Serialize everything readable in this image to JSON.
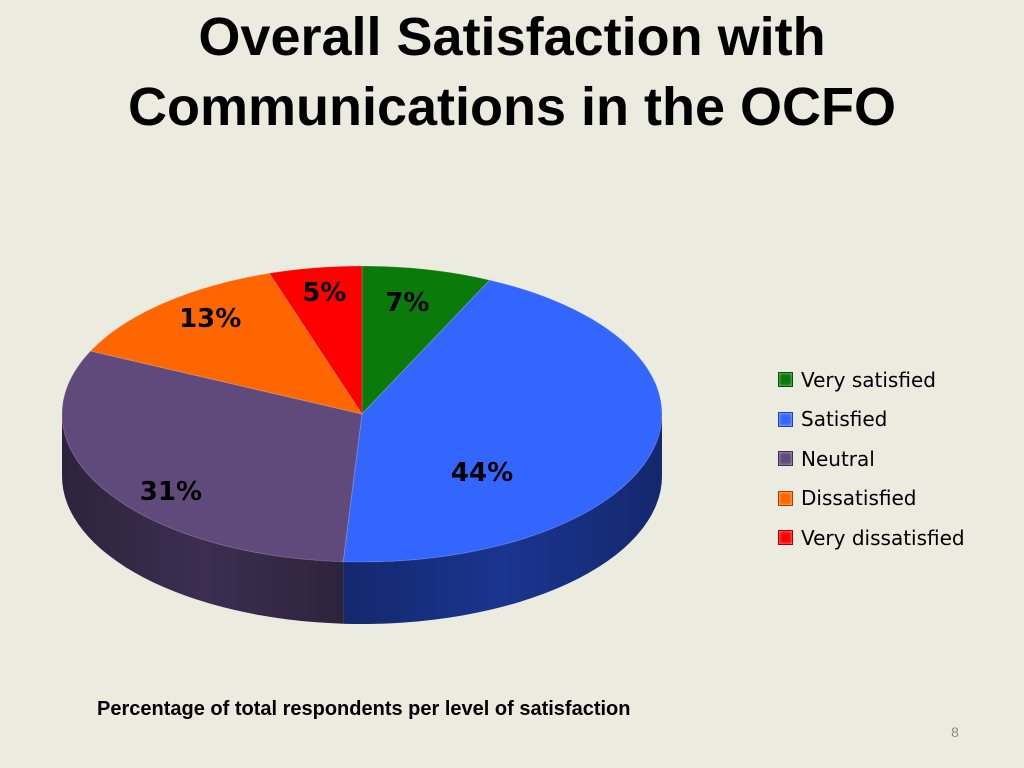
{
  "slide": {
    "title_lines": [
      "Overall Satisfaction with",
      "Communications in the OCFO"
    ],
    "caption": "Percentage of total respondents per level of satisfaction",
    "slide_number": "8"
  },
  "chart_data": {
    "type": "pie",
    "style": "3d",
    "title": "",
    "legend_position": "right",
    "slices": [
      {
        "name": "Very satisfied",
        "value": 7,
        "label": "7%",
        "color": "#0a7a0a",
        "side_color": "#064a06"
      },
      {
        "name": "Satisfied",
        "value": 44,
        "label": "44%",
        "color": "#3366ff",
        "side_color": "#1a3590"
      },
      {
        "name": "Neutral",
        "value": 31,
        "label": "31%",
        "color": "#604a7b",
        "side_color": "#3d2e50"
      },
      {
        "name": "Dissatisfied",
        "value": 13,
        "label": "13%",
        "color": "#ff6600",
        "side_color": "#a84300"
      },
      {
        "name": "Very dissatisfied",
        "value": 5,
        "label": "5%",
        "color": "#ff0000",
        "side_color": "#a00000"
      }
    ]
  }
}
